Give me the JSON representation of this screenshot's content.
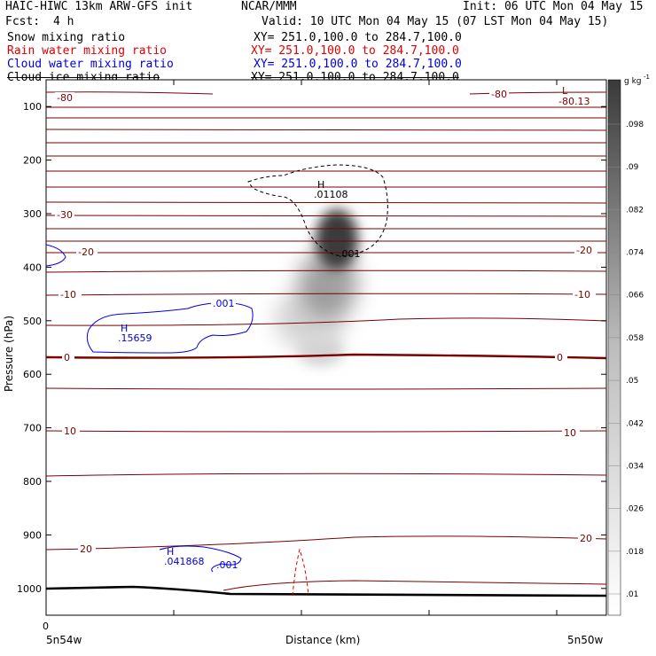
{
  "header": {
    "title": "HAIC-HIWC 13km ARW-GFS init",
    "org": "NCAR/MMM",
    "init": "Init: 06 UTC Mon 04 May 15",
    "fcst_label": "Fcst:",
    "fcst_value": "4 h",
    "valid": "Valid: 10 UTC Mon 04 May 15 (07 LST Mon 04 May 15)",
    "fields": [
      {
        "name": "Snow mixing ratio",
        "xy": "XY= 251.0,100.0 to 284.7,100.0",
        "color": "#000000"
      },
      {
        "name": "Rain water mixing ratio",
        "xy": "XY= 251.0,100.0 to 284.7,100.0",
        "color": "#e00000"
      },
      {
        "name": "Cloud water mixing ratio",
        "xy": "XY= 251.0,100.0 to 284.7,100.0",
        "color": "#0000e0"
      },
      {
        "name": "Cloud ice mixing ratio",
        "xy": "XY= 251.0,100.0 to 284.7,100.0",
        "color": "#000000"
      }
    ]
  },
  "chart_data": {
    "type": "heatmap",
    "xlabel": "Distance (km)",
    "ylabel": "Pressure (hPa)",
    "x_start_label": "5n54w",
    "x_end_label": "5n50w",
    "x_zero_label": "0",
    "y_range": [
      50,
      1050
    ],
    "y_ticks": [
      100,
      200,
      300,
      400,
      500,
      600,
      700,
      800,
      900,
      1000
    ],
    "colorbar": {
      "unit": "g kg",
      "unit_exp": "-1",
      "levels": [
        ".01",
        ".018",
        ".026",
        ".034",
        ".042",
        ".05",
        ".058",
        ".066",
        ".074",
        ".082",
        ".09",
        ".098"
      ]
    },
    "temperature_labels": [
      {
        "text": "-80",
        "color": "#7a0000"
      },
      {
        "text": "-80",
        "color": "#7a0000"
      },
      {
        "text": "-30",
        "color": "#7a0000"
      },
      {
        "text": "-20",
        "color": "#7a0000"
      },
      {
        "text": "-20",
        "color": "#7a0000"
      },
      {
        "text": "-10",
        "color": "#7a0000"
      },
      {
        "text": "-10",
        "color": "#7a0000"
      },
      {
        "text": "0",
        "color": "#7a0000"
      },
      {
        "text": "0",
        "color": "#7a0000"
      },
      {
        "text": "10",
        "color": "#7a0000"
      },
      {
        "text": "10",
        "color": "#7a0000"
      },
      {
        "text": "20",
        "color": "#7a0000"
      },
      {
        "text": "20",
        "color": "#7a0000"
      }
    ],
    "extrema": {
      "low_letter": "L",
      "low_value": "-80.13",
      "ice_high_letter": "H",
      "ice_high_value": ".01108",
      "ice_contour_label": ".001",
      "cw_high_letter": "H",
      "cw_high_value": ".15659",
      "cw_contour_label": ".001",
      "cw_low_high_letter": "H",
      "cw_low_high_value": ".041868",
      "cw_low_contour_label": ".001"
    }
  }
}
